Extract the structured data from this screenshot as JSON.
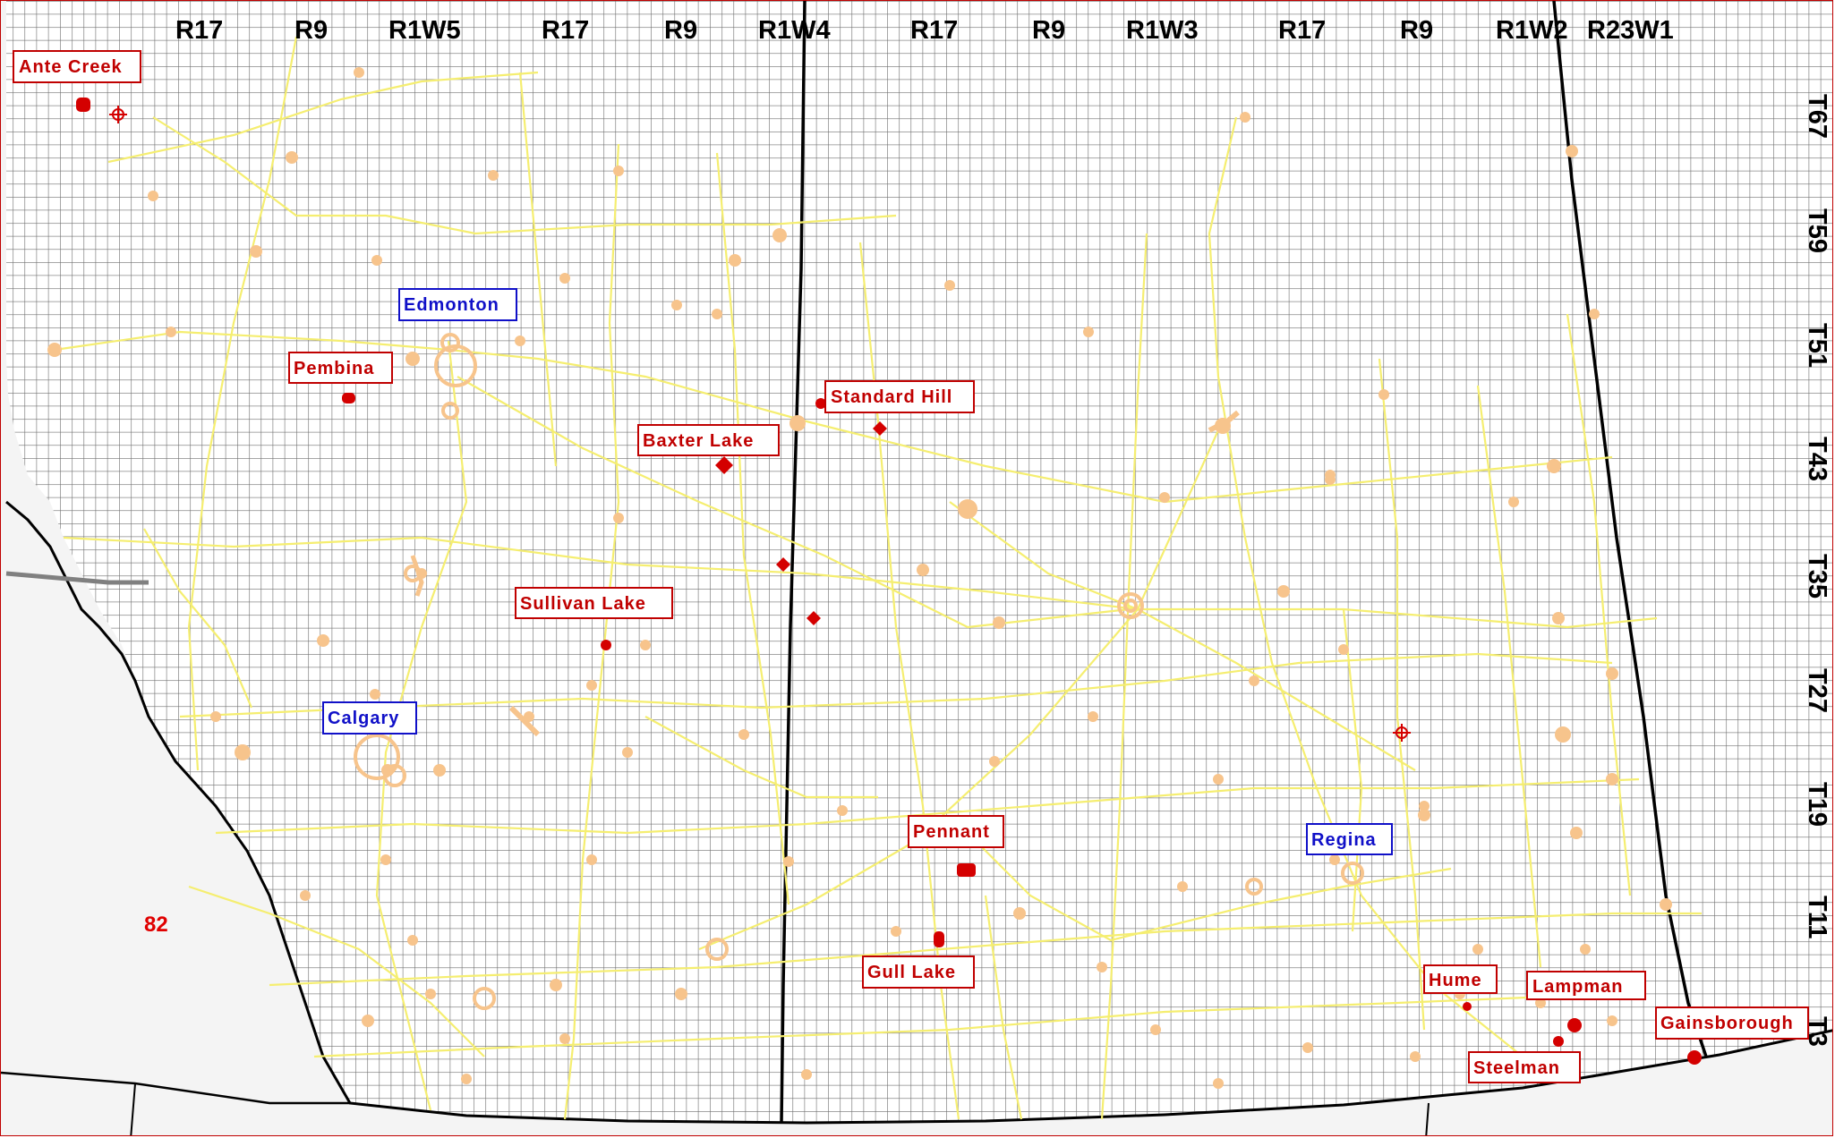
{
  "map": {
    "ranges": [
      "R17",
      "R9",
      "R1W5",
      "R17",
      "R9",
      "R1W4",
      "R17",
      "R9",
      "R1W3",
      "R17",
      "R9",
      "R1W2",
      "R23W1"
    ],
    "townships": [
      "T67",
      "T59",
      "T51",
      "T43",
      "T35",
      "T27",
      "T19",
      "T11",
      "T3"
    ],
    "region_label": "82",
    "cities": [
      {
        "name": "Edmonton"
      },
      {
        "name": "Calgary"
      },
      {
        "name": "Regina"
      }
    ],
    "sites": [
      {
        "name": "Ante Creek"
      },
      {
        "name": "Pembina"
      },
      {
        "name": "Standard Hill"
      },
      {
        "name": "Baxter Lake"
      },
      {
        "name": "Sullivan Lake"
      },
      {
        "name": "Pennant"
      },
      {
        "name": "Gull Lake"
      },
      {
        "name": "Hume"
      },
      {
        "name": "Lampman"
      },
      {
        "name": "Steelman"
      },
      {
        "name": "Gainsborough"
      }
    ],
    "colors": {
      "grid": "#6e6e6e",
      "meridian": "#000000",
      "road": "#f5ee70",
      "town": "#f7c48c",
      "site_red": "#d40000",
      "city_blue": "#1010c8",
      "outside": "#f4f4f4"
    }
  }
}
